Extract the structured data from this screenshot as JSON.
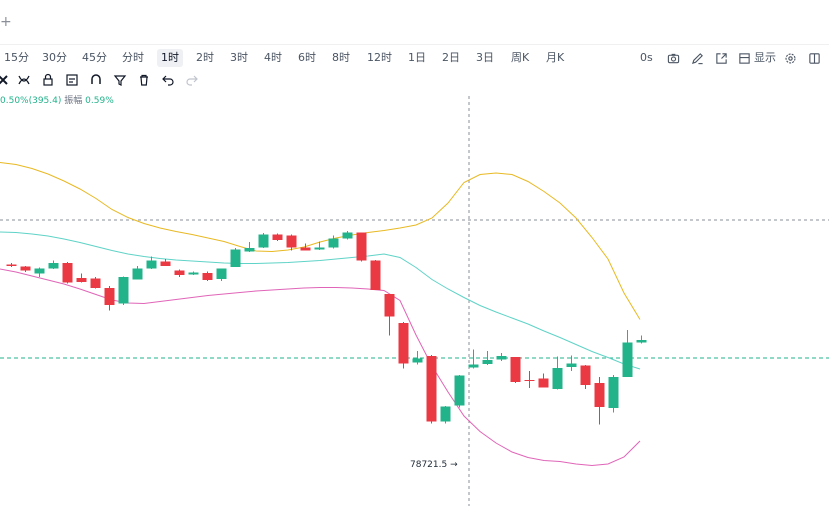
{
  "header": {
    "plus_icon": "plus-icon"
  },
  "timeframes": [
    {
      "label": "15分",
      "active": false
    },
    {
      "label": "30分",
      "active": false
    },
    {
      "label": "45分",
      "active": false
    },
    {
      "label": "分时",
      "active": false
    },
    {
      "label": "1时",
      "active": true
    },
    {
      "label": "2时",
      "active": false
    },
    {
      "label": "3时",
      "active": false
    },
    {
      "label": "4时",
      "active": false
    },
    {
      "label": "6时",
      "active": false
    },
    {
      "label": "8时",
      "active": false
    },
    {
      "label": "12时",
      "active": false
    },
    {
      "label": "1日",
      "active": false
    },
    {
      "label": "2日",
      "active": false
    },
    {
      "label": "3日",
      "active": false
    },
    {
      "label": "周K",
      "active": false
    },
    {
      "label": "月K",
      "active": false
    }
  ],
  "right_controls": {
    "countdown": "0s",
    "display_label": "显示",
    "icons": [
      "camera-icon",
      "pen-icon",
      "expand-icon",
      "gear-icon"
    ]
  },
  "toolbar_icons": [
    "cursor-icon",
    "curve-icon",
    "lock-icon",
    "note-icon",
    "magnet-icon",
    "filter-icon",
    "trash-icon",
    "undo-icon",
    "redo-icon"
  ],
  "info": {
    "change": "0.50%(395.4)",
    "amplitude_label": "振幅",
    "amplitude": "0.59%"
  },
  "chart_data": {
    "type": "candlestick",
    "low_marker": "78721.5",
    "colors": {
      "up": "#22b38a",
      "down": "#ea3943",
      "upper_band": "#e8b923",
      "middle_band": "#5fd3c7",
      "lower_band": "#e065b8"
    },
    "candles": [
      {
        "o": 0.5,
        "c": 0.2,
        "h": 0.8,
        "l": 0.0
      },
      {
        "o": 0.1,
        "c": -0.7,
        "h": 0.2,
        "l": -1.0
      },
      {
        "o": -1.3,
        "c": -0.3,
        "h": -0.1,
        "l": -2.0
      },
      {
        "o": -0.3,
        "c": 0.8,
        "h": 1.3,
        "l": -0.4
      },
      {
        "o": 0.8,
        "c": -3.1,
        "h": 1.0,
        "l": -3.3
      },
      {
        "o": -2.2,
        "c": -3.0,
        "h": -1.3,
        "l": -3.1
      },
      {
        "o": -2.3,
        "c": -4.2,
        "h": -2.0,
        "l": -4.3
      },
      {
        "o": -4.2,
        "c": -7.6,
        "h": -3.8,
        "l": -8.7
      },
      {
        "o": -7.3,
        "c": -2.0,
        "h": -1.9,
        "l": -7.6
      },
      {
        "o": -2.5,
        "c": -0.3,
        "h": 0.2,
        "l": -2.5
      },
      {
        "o": -0.3,
        "c": 1.3,
        "h": 2.1,
        "l": -0.4
      },
      {
        "o": 1.1,
        "c": 0.2,
        "h": 1.6,
        "l": 0.2
      },
      {
        "o": -0.7,
        "c": -1.6,
        "h": -0.5,
        "l": -2.0
      },
      {
        "o": -1.5,
        "c": -1.1,
        "h": -0.9,
        "l": -1.6
      },
      {
        "o": -1.2,
        "c": -2.6,
        "h": -0.9,
        "l": -2.8
      },
      {
        "o": -2.4,
        "c": -0.3,
        "h": -0.3,
        "l": -2.8
      },
      {
        "o": 0.0,
        "c": 3.5,
        "h": 3.8,
        "l": 0.0
      },
      {
        "o": 3.1,
        "c": 3.8,
        "h": 5.0,
        "l": 3.0
      },
      {
        "o": 3.9,
        "c": 6.5,
        "h": 6.8,
        "l": 3.8
      },
      {
        "o": 6.5,
        "c": 5.4,
        "h": 6.7,
        "l": 5.2
      },
      {
        "o": 6.3,
        "c": 3.9,
        "h": 6.5,
        "l": 3.3
      },
      {
        "o": 3.9,
        "c": 3.3,
        "h": 4.7,
        "l": 3.3
      },
      {
        "o": 3.5,
        "c": 3.9,
        "h": 5.1,
        "l": 3.4
      },
      {
        "o": 3.9,
        "c": 5.7,
        "h": 6.3,
        "l": 3.7
      },
      {
        "o": 5.7,
        "c": 6.9,
        "h": 7.2,
        "l": 5.5
      },
      {
        "o": 6.9,
        "c": 1.3,
        "h": 6.9,
        "l": 1.1
      },
      {
        "o": 1.3,
        "c": -4.6,
        "h": 1.4,
        "l": -4.6
      },
      {
        "o": -5.4,
        "c": -9.9,
        "h": -5.4,
        "l": -13.7
      },
      {
        "o": -11.2,
        "c": -19.3,
        "h": -11.0,
        "l": -20.3
      },
      {
        "o": -19.1,
        "c": -18.3,
        "h": -16.8,
        "l": -19.5
      },
      {
        "o": -17.8,
        "c": -30.9,
        "h": -17.6,
        "l": -31.3
      },
      {
        "o": -30.9,
        "c": -27.9,
        "h": -27.8,
        "l": -31.3
      },
      {
        "o": -27.7,
        "c": -21.7,
        "h": -21.6,
        "l": -28.1
      },
      {
        "o": -20.1,
        "c": -19.5,
        "h": -16.5,
        "l": -20.3
      },
      {
        "o": -19.4,
        "c": -18.6,
        "h": -16.8,
        "l": -19.6
      },
      {
        "o": -18.5,
        "c": -17.8,
        "h": -17.2,
        "l": -18.8
      },
      {
        "o": -18.0,
        "c": -23.0,
        "h": -18.0,
        "l": -23.2
      },
      {
        "o": -22.6,
        "c": -22.8,
        "h": -20.8,
        "l": -24.2
      },
      {
        "o": -22.3,
        "c": -24.1,
        "h": -21.3,
        "l": -24.1
      },
      {
        "o": -24.4,
        "c": -20.2,
        "h": -17.9,
        "l": -24.5
      },
      {
        "o": -20.0,
        "c": -19.3,
        "h": -17.7,
        "l": -20.8
      },
      {
        "o": -19.7,
        "c": -23.6,
        "h": -19.6,
        "l": -24.4
      },
      {
        "o": -23.2,
        "c": -28.0,
        "h": -22.0,
        "l": -31.5
      },
      {
        "o": -28.2,
        "c": -22.0,
        "h": -21.6,
        "l": -29.1
      },
      {
        "o": -22.0,
        "c": -15.1,
        "h": -12.6,
        "l": -22.0
      },
      {
        "o": -15.1,
        "c": -14.6,
        "h": -13.7,
        "l": -15.3
      }
    ],
    "upper_band": [
      20.9,
      20.5,
      19.7,
      18.6,
      17.2,
      15.6,
      13.7,
      11.5,
      9.9,
      8.7,
      7.8,
      7.1,
      6.5,
      5.8,
      5.1,
      4.1,
      3.2,
      3.1,
      3.4,
      4.0,
      5.0,
      5.8,
      6.4,
      6.9,
      7.3,
      7.8,
      8.4,
      9.8,
      12.8,
      16.9,
      18.5,
      18.8,
      18.5,
      17.1,
      15.1,
      12.8,
      9.8,
      5.9,
      1.6,
      -5.2,
      -10.5
    ],
    "middle_band": [
      7.0,
      6.9,
      6.6,
      6.2,
      5.6,
      4.9,
      4.1,
      3.3,
      2.6,
      2.1,
      1.7,
      1.4,
      1.2,
      1.0,
      0.8,
      0.7,
      0.7,
      0.8,
      0.9,
      1.1,
      1.3,
      1.6,
      1.9,
      2.2,
      2.6,
      1.9,
      -0.1,
      -2.5,
      -4.4,
      -6.1,
      -7.7,
      -9.0,
      -10.2,
      -11.4,
      -12.8,
      -14.1,
      -15.5,
      -16.9,
      -18.1,
      -19.4,
      -20.4
    ],
    "lower_band": [
      -0.4,
      -1.0,
      -1.8,
      -2.6,
      -3.4,
      -4.4,
      -5.5,
      -6.6,
      -7.2,
      -7.3,
      -6.9,
      -6.5,
      -6.1,
      -5.7,
      -5.4,
      -5.1,
      -4.8,
      -4.6,
      -4.4,
      -4.2,
      -4.1,
      -4.1,
      -4.2,
      -4.4,
      -4.7,
      -6.7,
      -13.6,
      -19.8,
      -25.0,
      -29.8,
      -32.9,
      -35.2,
      -37.0,
      -38.1,
      -38.7,
      -38.9,
      -39.4,
      -39.7,
      -39.4,
      -38.0,
      -34.8
    ]
  }
}
